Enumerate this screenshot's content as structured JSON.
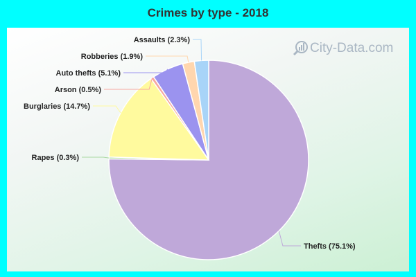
{
  "chart_data": {
    "type": "pie",
    "title": "Crimes by type - 2018",
    "categories": [
      "Thefts",
      "Rapes",
      "Burglaries",
      "Arson",
      "Auto thefts",
      "Robberies",
      "Assaults"
    ],
    "values": [
      75.1,
      0.3,
      14.7,
      0.5,
      5.1,
      1.9,
      2.3
    ],
    "labels": [
      "Thefts (75.1%)",
      "Rapes (0.3%)",
      "Burglaries (14.7%)",
      "Arson (0.5%)",
      "Auto thefts (5.1%)",
      "Robberies (1.9%)",
      "Assaults (2.3%)"
    ],
    "colors": [
      "#bfa8d9",
      "#a8d8a0",
      "#fffa9e",
      "#f7a8a0",
      "#9b93ef",
      "#ffd6ae",
      "#a8d4f8"
    ]
  },
  "watermark": {
    "text": "City-Data.com",
    "icon": "bar-chart-magnifier-icon"
  }
}
